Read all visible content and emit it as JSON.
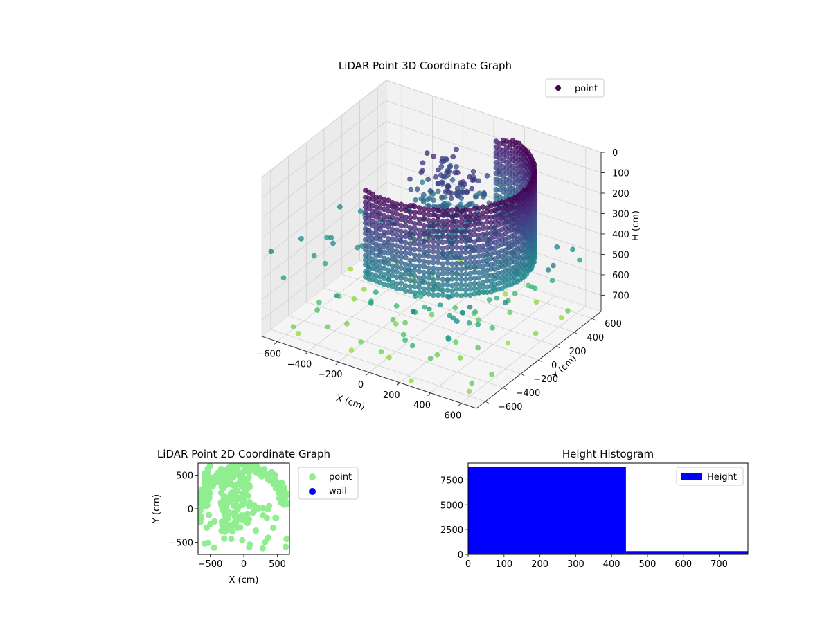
{
  "chart_data": [
    {
      "type": "scatter",
      "title": "LiDAR Point 3D Coordinate Graph",
      "projection": "3d",
      "xlabel": "X (cm)",
      "ylabel": "Y (cm)",
      "zlabel": "H (cm)",
      "xlim": [
        -700,
        700
      ],
      "ylim": [
        -700,
        700
      ],
      "zlim": [
        0,
        780
      ],
      "z_inverted": true,
      "x_ticks": [
        "−600",
        "−400",
        "−200",
        "0",
        "200",
        "400",
        "600"
      ],
      "y_ticks": [
        "−600",
        "−400",
        "−200",
        "0",
        "200",
        "400",
        "600"
      ],
      "z_ticks": [
        "0",
        "100",
        "200",
        "300",
        "400",
        "500",
        "600",
        "700"
      ],
      "colormap": "viridis_r (by height)",
      "series": [
        {
          "name": "point",
          "color": "#440154",
          "note_values": "dense wall ring of points at radius ~650 cm, heights 0–450 cm, plus scattered floor points"
        }
      ],
      "legend": {
        "entries": [
          "point"
        ],
        "placement": "top-right"
      }
    },
    {
      "type": "scatter",
      "title": "LiDAR Point 2D Coordinate Graph",
      "xlabel": "X (cm)",
      "ylabel": "Y (cm)",
      "xlim": [
        -680,
        680
      ],
      "ylim": [
        -680,
        680
      ],
      "x_ticks": [
        "−500",
        "0",
        "500"
      ],
      "y_ticks": [
        "−500",
        "0",
        "500"
      ],
      "series": [
        {
          "name": "point",
          "color": "#90ee90"
        },
        {
          "name": "wall",
          "color": "#0000ff"
        }
      ],
      "legend": {
        "entries": [
          "point",
          "wall"
        ],
        "placement": "outside-right"
      }
    },
    {
      "type": "bar",
      "title": "Height Histogram",
      "bins": [
        [
          0,
          440,
          8800
        ],
        [
          440,
          780,
          330
        ]
      ],
      "xlim": [
        0,
        780
      ],
      "ylim": [
        0,
        9200
      ],
      "x_ticks": [
        "0",
        "100",
        "200",
        "300",
        "400",
        "500",
        "600",
        "700"
      ],
      "y_ticks": [
        "0",
        "2500",
        "5000",
        "7500"
      ],
      "series": [
        {
          "name": "Height",
          "color": "#0000ff"
        }
      ],
      "legend": {
        "entries": [
          "Height"
        ],
        "placement": "top-right"
      }
    }
  ]
}
